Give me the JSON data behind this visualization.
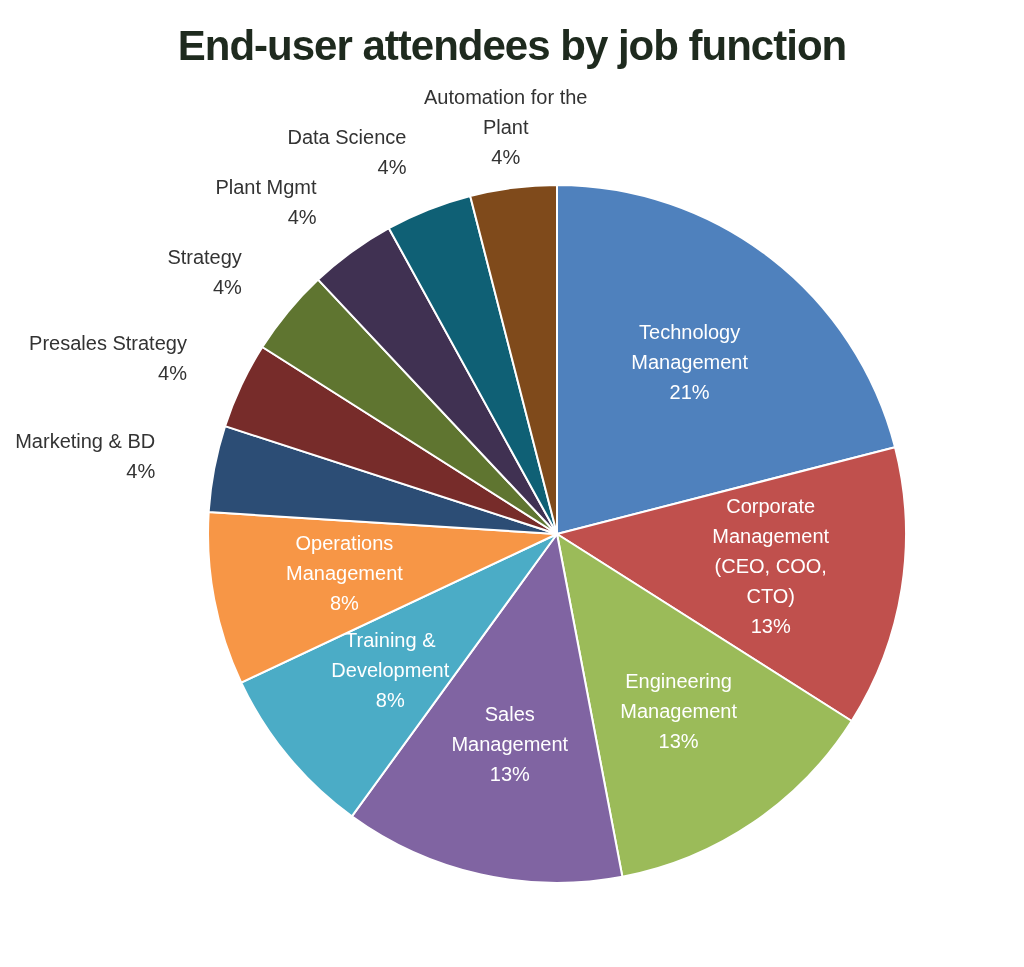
{
  "chart_data": {
    "type": "pie",
    "title": "End-user attendees by job function",
    "categories": [
      "Technology Management",
      "Corporate Management (CEO, COO, CTO)",
      "Engineering Management",
      "Sales Management",
      "Training & Development",
      "Operations Management",
      "Marketing & BD",
      "Presales Strategy",
      "Strategy",
      "Plant Mgmt",
      "Data Science",
      "Automation for the Plant"
    ],
    "values": [
      21,
      13,
      13,
      13,
      8,
      8,
      4,
      4,
      4,
      4,
      4,
      4
    ],
    "value_labels": [
      "21%",
      "13%",
      "13%",
      "13%",
      "8%",
      "8%",
      "4%",
      "4%",
      "4%",
      "4%",
      "4%",
      "4%"
    ],
    "colors": [
      "#4f81bd",
      "#c0504d",
      "#9bbb59",
      "#8064a2",
      "#4bacc6",
      "#f79646",
      "#2c4d75",
      "#772c2a",
      "#5f7530",
      "#403152",
      "#0f6075",
      "#7f4a1b"
    ],
    "legend": false
  }
}
